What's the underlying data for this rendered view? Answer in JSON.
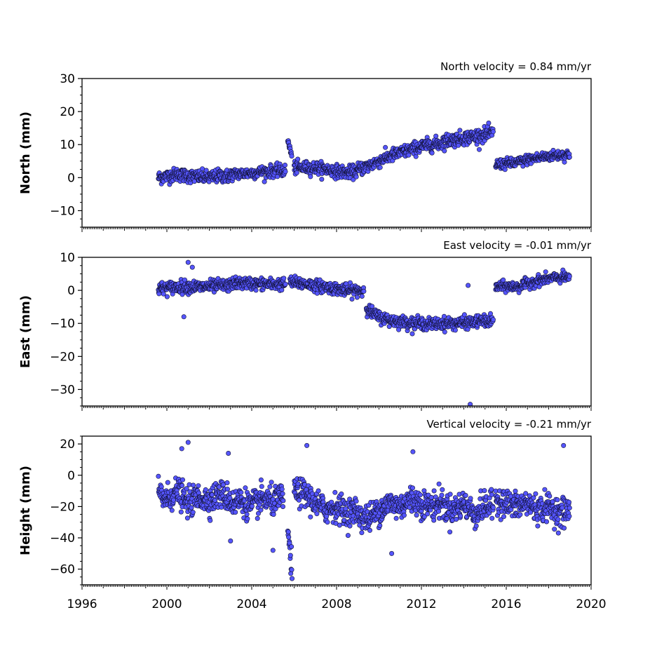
{
  "chart_data": [
    {
      "type": "scatter",
      "title": "North velocity = 0.84 mm/yr",
      "ylabel": "North (mm)",
      "xlabel": "",
      "xlim": [
        1996,
        2020
      ],
      "ylim": [
        -15,
        30
      ],
      "yticks": [
        -10,
        0,
        10,
        20,
        30
      ],
      "ytick_labels": [
        "−10",
        "0",
        "10",
        "20",
        "30"
      ],
      "xtick_labels": [],
      "series": [
        {
          "color": "#5555ff",
          "segments": [
            {
              "x": [
                1999.6,
                2000.0,
                2000.5,
                2001.0,
                2001.5,
                2002.0,
                2002.5,
                2003.0
              ],
              "y": [
                0,
                0.4,
                1.0,
                0.5,
                0.3,
                0.0,
                0.6,
                0.3
              ],
              "spread": 1.8
            },
            {
              "x": [
                2003.0,
                2003.5,
                2004.0,
                2004.5,
                2005.0,
                2005.6
              ],
              "y": [
                1.0,
                1.2,
                1.4,
                1.8,
                2.0,
                2.2
              ],
              "spread": 1.6
            },
            {
              "x": [
                2005.7,
                2005.8,
                2005.9
              ],
              "y": [
                11,
                9,
                6
              ],
              "spread": 1.2
            },
            {
              "x": [
                2006.0,
                2006.5,
                2007.0,
                2007.5,
                2008.0,
                2008.5,
                2009.0
              ],
              "y": [
                3.0,
                3.0,
                3.0,
                2.5,
                2.0,
                1.5,
                2.0
              ],
              "spread": 1.7
            },
            {
              "x": [
                2009.0,
                2009.5,
                2010.0,
                2010.5,
                2011.0,
                2011.5,
                2012.0,
                2012.5,
                2013.0
              ],
              "y": [
                2.5,
                3.5,
                5.0,
                6.5,
                7.5,
                8.5,
                9.5,
                10.0,
                10.5
              ],
              "spread": 1.8
            },
            {
              "x": [
                2013.0,
                2013.5,
                2014.0,
                2014.5,
                2015.0,
                2015.4
              ],
              "y": [
                11.0,
                11.5,
                12.0,
                12.5,
                13.0,
                13.5
              ],
              "spread": 1.9
            },
            {
              "x": [
                2015.5,
                2016.0,
                2016.5,
                2017.0,
                2017.5,
                2018.0,
                2018.5,
                2019.0
              ],
              "y": [
                4.0,
                4.2,
                4.5,
                5.5,
                6.0,
                6.5,
                6.8,
                7.0
              ],
              "spread": 1.4
            }
          ]
        }
      ]
    },
    {
      "type": "scatter",
      "title": "East velocity = -0.01 mm/yr",
      "ylabel": "East (mm)",
      "xlabel": "",
      "xlim": [
        1996,
        2020
      ],
      "ylim": [
        -35,
        10
      ],
      "yticks": [
        -30,
        -20,
        -10,
        0,
        10
      ],
      "ytick_labels": [
        "−30",
        "−20",
        "−10",
        "0",
        "10"
      ],
      "xtick_labels": [],
      "series": [
        {
          "color": "#5555ff",
          "segments": [
            {
              "x": [
                1999.6,
                2000.0,
                2000.5,
                2001.0,
                2001.5,
                2002.0,
                2002.5,
                2003.0
              ],
              "y": [
                0.5,
                0.8,
                1.0,
                1.2,
                1.0,
                1.2,
                1.4,
                1.5
              ],
              "spread": 1.7
            },
            {
              "x": [
                2003.0,
                2003.5,
                2004.0,
                2004.5,
                2005.0,
                2005.6
              ],
              "y": [
                2.0,
                2.2,
                2.0,
                2.0,
                1.8,
                2.0
              ],
              "spread": 1.6
            },
            {
              "x": [
                2005.8,
                2006.5,
                2007.0,
                2007.5,
                2008.0,
                2008.5,
                2009.3
              ],
              "y": [
                2.5,
                2.0,
                1.5,
                1.0,
                0.5,
                0.0,
                0.0
              ],
              "spread": 1.6
            },
            {
              "x": [
                2009.4,
                2009.7,
                2010.0,
                2010.5,
                2011.0,
                2011.5,
                2012.0,
                2012.5,
                2013.0,
                2013.5,
                2014.0,
                2014.5,
                2015.0,
                2015.4
              ],
              "y": [
                -5,
                -7,
                -8,
                -9,
                -9.5,
                -9.8,
                -10,
                -10.2,
                -10,
                -10,
                -9.8,
                -9.5,
                -9.3,
                -9.5
              ],
              "spread": 1.6
            },
            {
              "x": [
                2015.5,
                2016.0,
                2016.5,
                2017.0,
                2017.5,
                2018.0,
                2018.5,
                2019.0
              ],
              "y": [
                1.0,
                1.2,
                1.0,
                2.0,
                3.0,
                3.5,
                3.8,
                4.0
              ],
              "spread": 1.4
            }
          ],
          "outliers": [
            [
              2000.8,
              -8
            ],
            [
              2001.0,
              8.5
            ],
            [
              2001.2,
              7
            ],
            [
              2014.2,
              1.5
            ],
            [
              2014.3,
              -34.5
            ]
          ]
        }
      ]
    },
    {
      "type": "scatter",
      "title": "Vertical velocity = -0.21 mm/yr",
      "ylabel": "Height (mm)",
      "xlabel": "",
      "xlim": [
        1996,
        2020
      ],
      "ylim": [
        -70,
        25
      ],
      "yticks": [
        -60,
        -40,
        -20,
        0,
        20
      ],
      "ytick_labels": [
        "−60",
        "−40",
        "−20",
        "0",
        "20"
      ],
      "xticks": [
        1996,
        2000,
        2004,
        2008,
        2012,
        2016,
        2020
      ],
      "xtick_labels": [
        "1996",
        "2000",
        "2004",
        "2008",
        "2012",
        "2016",
        "2020"
      ],
      "series": [
        {
          "color": "#5555ff",
          "segments": [
            {
              "x": [
                1999.6,
                2000.0,
                2000.5,
                2001.0,
                2001.5,
                2002.0,
                2002.5,
                2003.0
              ],
              "y": [
                -12,
                -15,
                -10,
                -18,
                -14,
                -16,
                -12,
                -15
              ],
              "spread": 8
            },
            {
              "x": [
                2003.0,
                2003.5,
                2004.0,
                2004.5,
                2005.0,
                2005.5
              ],
              "y": [
                -18,
                -16,
                -20,
                -15,
                -17,
                -14
              ],
              "spread": 8
            },
            {
              "x": [
                2005.7,
                2005.8,
                2005.9
              ],
              "y": [
                -35,
                -50,
                -60
              ],
              "spread": 8
            },
            {
              "x": [
                2006.0,
                2006.5,
                2007.0,
                2007.5,
                2008.0,
                2008.5,
                2009.0
              ],
              "y": [
                -10,
                -12,
                -18,
                -22,
                -20,
                -24,
                -22
              ],
              "spread": 8
            },
            {
              "x": [
                2009.0,
                2009.5,
                2010.0,
                2010.5,
                2011.0,
                2011.5,
                2012.0,
                2012.5,
                2013.0
              ],
              "y": [
                -25,
                -28,
                -22,
                -18,
                -20,
                -15,
                -18,
                -20,
                -17
              ],
              "spread": 8
            },
            {
              "x": [
                2013.0,
                2013.5,
                2014.0,
                2014.5,
                2015.0,
                2015.4
              ],
              "y": [
                -20,
                -22,
                -18,
                -25,
                -20,
                -20
              ],
              "spread": 8
            },
            {
              "x": [
                2015.5,
                2016.0,
                2016.5,
                2017.0,
                2017.5,
                2018.0,
                2018.5,
                2019.0
              ],
              "y": [
                -15,
                -18,
                -20,
                -18,
                -22,
                -20,
                -24,
                -22
              ],
              "spread": 8
            }
          ],
          "outliers": [
            [
              2000.7,
              17
            ],
            [
              2001.0,
              21
            ],
            [
              2002.9,
              14
            ],
            [
              2003.0,
              -42
            ],
            [
              2005.0,
              -48
            ],
            [
              2005.9,
              -66
            ],
            [
              2006.6,
              19
            ],
            [
              2011.6,
              15
            ],
            [
              2018.7,
              19
            ],
            [
              2010.6,
              -50
            ]
          ]
        }
      ]
    }
  ]
}
